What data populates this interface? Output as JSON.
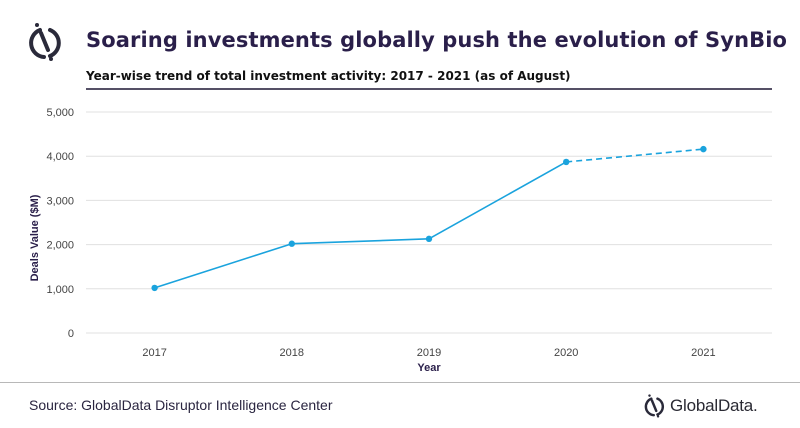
{
  "header": {
    "logo_icon": "globaldata-logo-icon",
    "title": "Soaring investments globally push the evolution of SynBio",
    "subtitle": "Year-wise trend of total investment activity: 2017 - 2021 (as of August)"
  },
  "footer": {
    "source": "Source: GlobalData Disruptor Intelligence Center",
    "brand": "GlobalData.",
    "brand_icon": "globaldata-logo-icon"
  },
  "colors": {
    "line": "#1aa3dd",
    "grid": "#e0e0e0",
    "title": "#2a1f4a"
  },
  "chart_data": {
    "type": "line",
    "title": "Year-wise trend of total investment activity: 2017 - 2021 (as of August)",
    "xlabel": "Year",
    "ylabel": "Deals Value ($M)",
    "categories": [
      "2017",
      "2018",
      "2019",
      "2020",
      "2021"
    ],
    "series": [
      {
        "name": "Deals Value ($M)",
        "values": [
          1020,
          2020,
          2130,
          3870,
          4160
        ],
        "dashed_from_index": 3
      }
    ],
    "ylim": [
      0,
      5000
    ],
    "yticks": [
      0,
      1000,
      2000,
      3000,
      4000,
      5000
    ],
    "ytick_labels": [
      "0",
      "1,000",
      "2,000",
      "3,000",
      "4,000",
      "5,000"
    ],
    "grid": true,
    "legend": "none",
    "annotations": [
      "2021 value shown as dashed segment (as of August)"
    ]
  }
}
